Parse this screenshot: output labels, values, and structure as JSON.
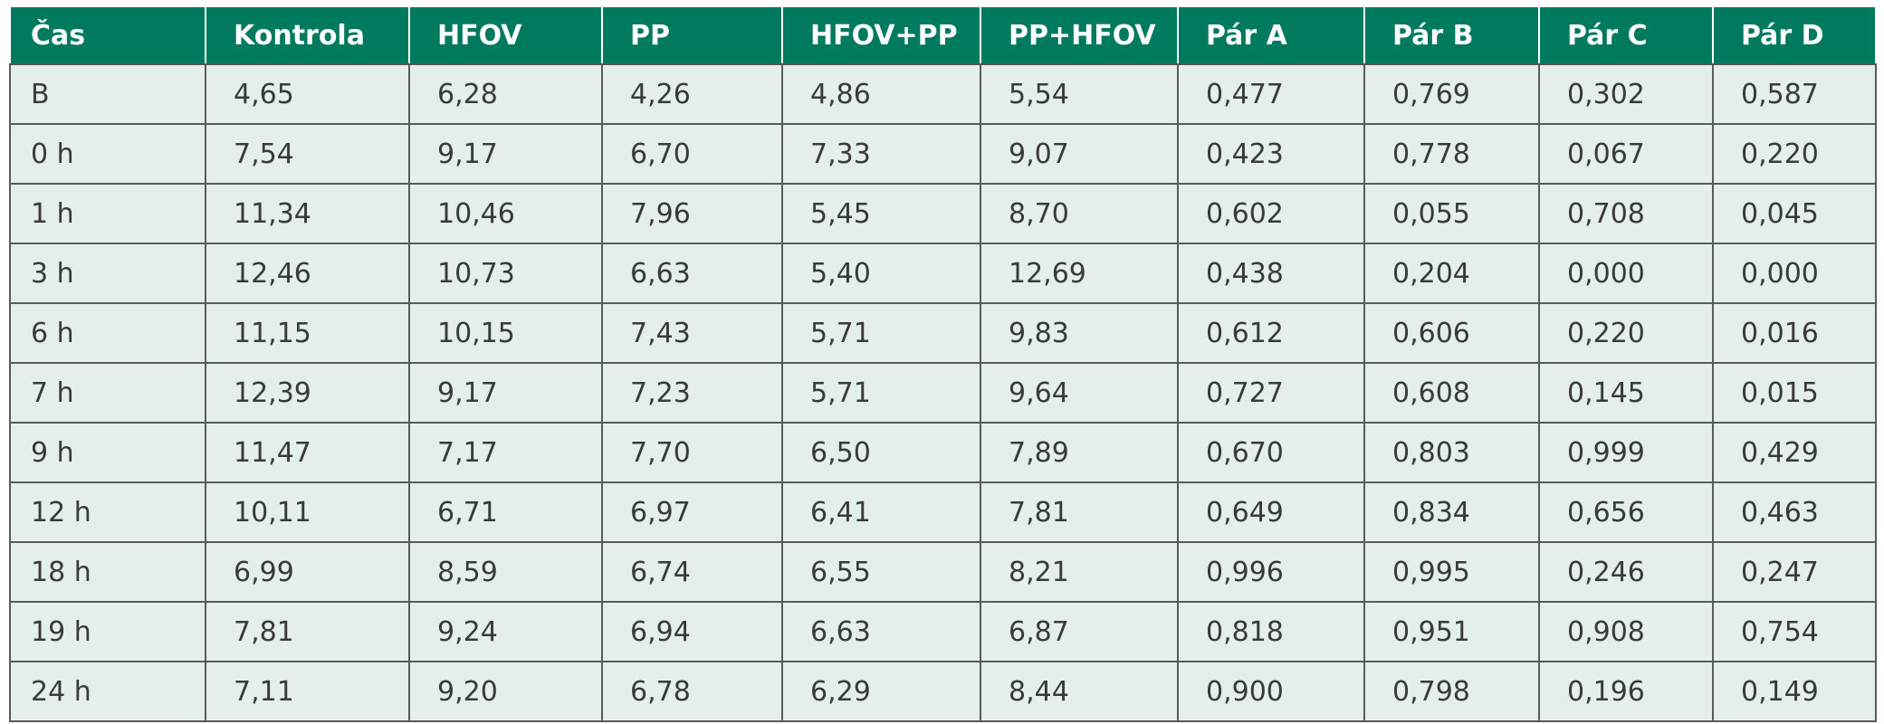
{
  "table": {
    "header": [
      "Čas",
      "Kontrola",
      "HFOV",
      "PP",
      "HFOV+PP",
      "PP+HFOV",
      "Pár A",
      "Pár B",
      "Pár C",
      "Pár D"
    ],
    "rows": [
      [
        "B",
        "4,65",
        "6,28",
        "4,26",
        "4,86",
        "5,54",
        "0,477",
        "0,769",
        "0,302",
        "0,587"
      ],
      [
        "0 h",
        "7,54",
        "9,17",
        "6,70",
        "7,33",
        "9,07",
        "0,423",
        "0,778",
        "0,067",
        "0,220"
      ],
      [
        "1 h",
        "11,34",
        "10,46",
        "7,96",
        "5,45",
        "8,70",
        "0,602",
        "0,055",
        "0,708",
        "0,045"
      ],
      [
        "3 h",
        "12,46",
        "10,73",
        "6,63",
        "5,40",
        "12,69",
        "0,438",
        "0,204",
        "0,000",
        "0,000"
      ],
      [
        "6 h",
        "11,15",
        "10,15",
        "7,43",
        "5,71",
        "9,83",
        "0,612",
        "0,606",
        "0,220",
        "0,016"
      ],
      [
        "7 h",
        "12,39",
        "9,17",
        "7,23",
        "5,71",
        "9,64",
        "0,727",
        "0,608",
        "0,145",
        "0,015"
      ],
      [
        "9 h",
        "11,47",
        "7,17",
        "7,70",
        "6,50",
        "7,89",
        "0,670",
        "0,803",
        "0,999",
        "0,429"
      ],
      [
        "12 h",
        "10,11",
        "6,71",
        "6,97",
        "6,41",
        "7,81",
        "0,649",
        "0,834",
        "0,656",
        "0,463"
      ],
      [
        "18 h",
        "6,99",
        "8,59",
        "6,74",
        "6,55",
        "8,21",
        "0,996",
        "0,995",
        "0,246",
        "0,247"
      ],
      [
        "19 h",
        "7,81",
        "9,24",
        "6,94",
        "6,63",
        "6,87",
        "0,818",
        "0,951",
        "0,908",
        "0,754"
      ],
      [
        "24 h",
        "7,11",
        "9,20",
        "6,78",
        "6,29",
        "8,44",
        "0,900",
        "0,798",
        "0,196",
        "0,149"
      ]
    ]
  }
}
